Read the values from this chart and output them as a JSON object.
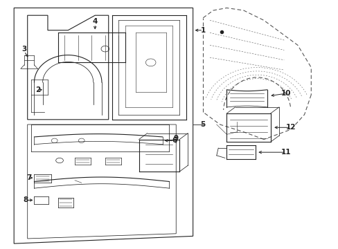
{
  "bg_color": "#ffffff",
  "line_color": "#222222",
  "dashed_color": "#555555",
  "fig_width": 4.89,
  "fig_height": 3.6,
  "dpi": 100
}
